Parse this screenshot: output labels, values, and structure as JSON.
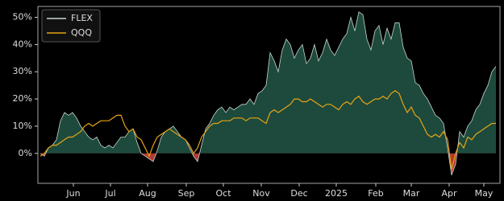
{
  "chart_data": {
    "type": "line",
    "series": [
      {
        "name": "FLEX",
        "color": "#c9d6cf",
        "fill": "#1d4a3c",
        "negative_fill": "#b03a2e",
        "values": [
          0,
          -1,
          2,
          3,
          5,
          12,
          15,
          14,
          15,
          13,
          10,
          8,
          6,
          5,
          6,
          3,
          2,
          3,
          2,
          4,
          6,
          6,
          8,
          9,
          4,
          0,
          -1,
          -2,
          -3,
          1,
          6,
          8,
          9,
          10,
          8,
          6,
          5,
          2,
          -1,
          -3,
          3,
          9,
          11,
          14,
          16,
          17,
          15,
          17,
          16,
          17,
          18,
          18,
          20,
          18,
          22,
          23,
          25,
          37,
          34,
          30,
          38,
          42,
          40,
          35,
          38,
          40,
          33,
          35,
          40,
          34,
          37,
          42,
          38,
          36,
          39,
          42,
          44,
          50,
          45,
          52,
          51,
          42,
          38,
          45,
          47,
          40,
          46,
          42,
          48,
          48,
          39,
          35,
          34,
          26,
          25,
          22,
          20,
          17,
          14,
          13,
          11,
          2,
          -8,
          -4,
          8,
          6,
          10,
          12,
          16,
          18,
          22,
          25,
          30,
          32
        ]
      },
      {
        "name": "QQQ",
        "color": "#e8a317",
        "values": [
          -1,
          0,
          2,
          3,
          3,
          4,
          5,
          6,
          6,
          7,
          8,
          10,
          11,
          10,
          11,
          12,
          12,
          12,
          13,
          14,
          14,
          10,
          8,
          9,
          6,
          5,
          2,
          -1,
          3,
          6,
          7,
          8,
          9,
          8,
          7,
          6,
          5,
          3,
          0,
          2,
          6,
          8,
          10,
          11,
          11,
          12,
          12,
          12,
          13,
          13,
          13,
          12,
          13,
          13,
          13,
          12,
          11,
          15,
          16,
          15,
          16,
          17,
          18,
          20,
          20,
          19,
          19,
          20,
          19,
          18,
          17,
          18,
          18,
          17,
          16,
          18,
          19,
          18,
          20,
          21,
          19,
          18,
          19,
          20,
          20,
          21,
          20,
          22,
          23,
          22,
          18,
          15,
          17,
          14,
          13,
          10,
          7,
          6,
          7,
          6,
          8,
          5,
          -6,
          0,
          4,
          2,
          6,
          5,
          7,
          8,
          9,
          10,
          11,
          11
        ]
      }
    ],
    "xlim": [
      -0.6,
      114
    ],
    "xticks": [
      {
        "value": 8.2,
        "label": "Jun"
      },
      {
        "value": 17.4,
        "label": "Jul"
      },
      {
        "value": 26.6,
        "label": "Aug"
      },
      {
        "value": 36.2,
        "label": "Sep"
      },
      {
        "value": 45.4,
        "label": "Oct"
      },
      {
        "value": 54.8,
        "label": "Nov"
      },
      {
        "value": 64.2,
        "label": "Dec"
      },
      {
        "value": 73.4,
        "label": "2025"
      },
      {
        "value": 83.2,
        "label": "Feb"
      },
      {
        "value": 92,
        "label": "Mar"
      },
      {
        "value": 101.4,
        "label": "Apr"
      },
      {
        "value": 110,
        "label": "May"
      }
    ],
    "ylim": [
      -11,
      54
    ],
    "yticks": [
      {
        "value": 0,
        "label": "0%"
      },
      {
        "value": 10,
        "label": "10%"
      },
      {
        "value": 20,
        "label": "20%"
      },
      {
        "value": 30,
        "label": "30%"
      },
      {
        "value": 40,
        "label": "40%"
      },
      {
        "value": 50,
        "label": "50%"
      }
    ],
    "legend": "upper left"
  }
}
